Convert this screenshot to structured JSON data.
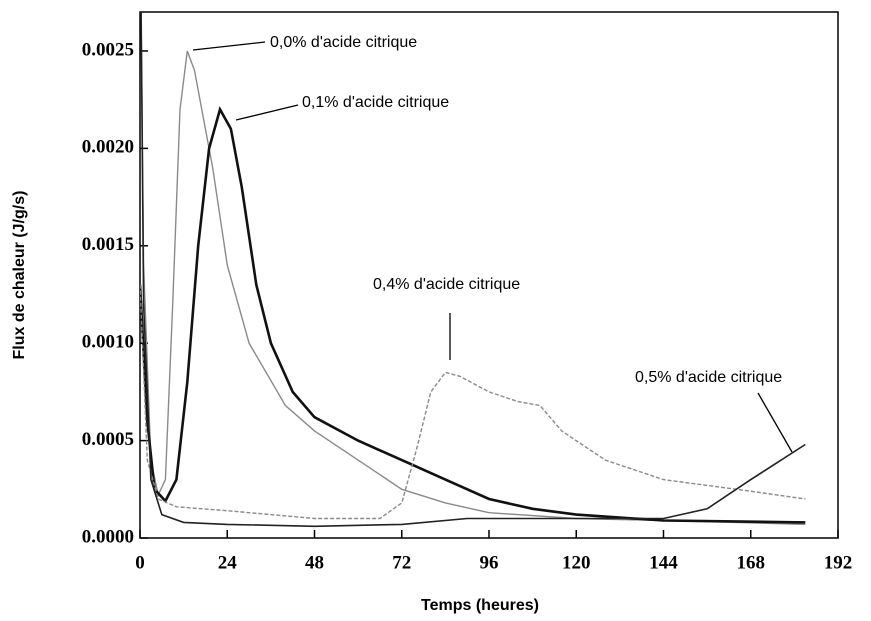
{
  "chart_data": {
    "type": "line",
    "xlabel": "Temps (heures)",
    "ylabel": "Flux de chaleur (J/g/s)",
    "xlim": [
      0,
      192
    ],
    "xticks": [
      0,
      24,
      48,
      72,
      96,
      120,
      144,
      168,
      192
    ],
    "ylim": [
      0,
      0.0027
    ],
    "yticks": [
      {
        "value": 0,
        "label": "0.0000"
      },
      {
        "value": 0.0005,
        "label": "0.0005"
      },
      {
        "value": 0.001,
        "label": "0.0010"
      },
      {
        "value": 0.0015,
        "label": "0.0015"
      },
      {
        "value": 0.002,
        "label": "0.0020"
      },
      {
        "value": 0.0025,
        "label": "0.0025"
      }
    ],
    "series": [
      {
        "name": "0,0% d'acide citrique",
        "color": "#8a8a8a",
        "x": [
          0.3,
          1,
          3,
          5,
          7,
          9,
          11,
          13,
          15,
          18,
          20,
          24,
          30,
          40,
          48,
          60,
          72,
          84,
          96,
          120,
          144,
          183
        ],
        "values": [
          0.0027,
          0.0014,
          0.0004,
          0.00022,
          0.0003,
          0.0012,
          0.0022,
          0.0025,
          0.0024,
          0.0021,
          0.0019,
          0.0014,
          0.001,
          0.00068,
          0.00055,
          0.0004,
          0.00025,
          0.00018,
          0.00013,
          0.0001,
          9e-05,
          7e-05
        ]
      },
      {
        "name": "0,1% d'acide citrique",
        "color": "#111111",
        "x": [
          0,
          2,
          4,
          7,
          10,
          13,
          16,
          19,
          22,
          25,
          28,
          32,
          36,
          42,
          48,
          60,
          72,
          84,
          96,
          108,
          120,
          144,
          183
        ],
        "values": [
          0.0013,
          0.0006,
          0.00025,
          0.00019,
          0.0003,
          0.0008,
          0.0015,
          0.002,
          0.0022,
          0.0021,
          0.0018,
          0.0013,
          0.001,
          0.00075,
          0.00062,
          0.0005,
          0.0004,
          0.0003,
          0.0002,
          0.00015,
          0.00012,
          9e-05,
          8e-05
        ]
      },
      {
        "name": "0,4% d'acide citrique",
        "color": "#8a8a8a",
        "x": [
          0,
          2,
          5,
          10,
          24,
          48,
          66,
          72,
          76,
          80,
          84,
          88,
          96,
          104,
          110,
          116,
          128,
          144,
          168,
          183
        ],
        "values": [
          0.0013,
          0.0004,
          0.0002,
          0.00016,
          0.00014,
          0.0001,
          0.0001,
          0.00018,
          0.00045,
          0.00075,
          0.00085,
          0.00083,
          0.00075,
          0.0007,
          0.00068,
          0.00055,
          0.0004,
          0.0003,
          0.00024,
          0.0002
        ]
      },
      {
        "name": "0,5% d'acide citrique",
        "color": "#222222",
        "x": [
          0.3,
          1,
          3,
          6,
          12,
          24,
          48,
          72,
          90,
          120,
          144,
          156,
          168,
          183
        ],
        "values": [
          0.0027,
          0.0012,
          0.0003,
          0.00012,
          8e-05,
          7e-05,
          6e-05,
          7e-05,
          0.0001,
          0.0001,
          0.0001,
          0.00015,
          0.0003,
          0.00048
        ]
      }
    ]
  }
}
